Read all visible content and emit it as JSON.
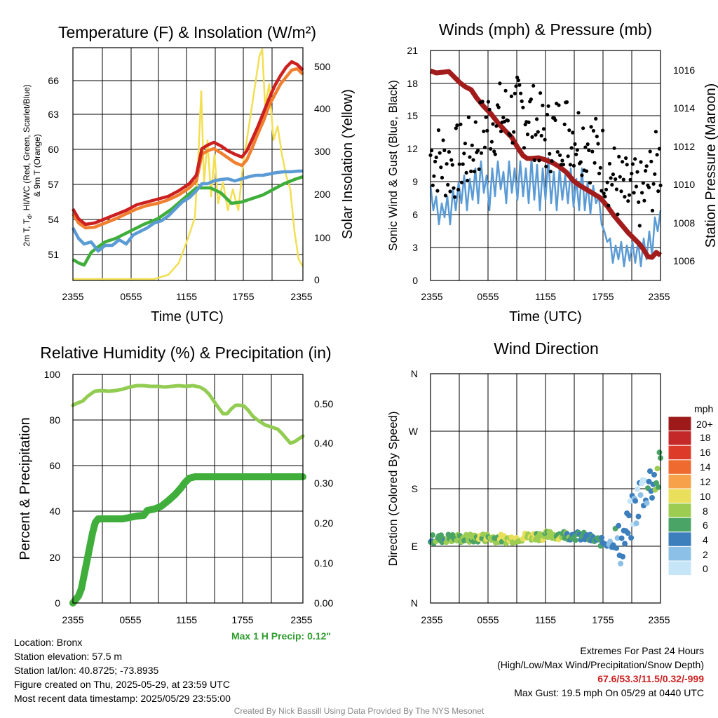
{
  "colors": {
    "temperature": "#cc1f1f",
    "heat_index": "#cc1f1f",
    "dewpoint": "#3fae3a",
    "wind_chill": "#5b9bd5",
    "temp_9m": "#f08030",
    "solar": "#f2df52",
    "sonic_wind": "#5b9bd5",
    "gust": "#000000",
    "pressure": "#a31c1c",
    "rh": "#92cc52",
    "precip": "#3fae3a",
    "max_precip_text": "#2e9c2e",
    "extremes_text": "#cc2222",
    "credit_text": "#888888"
  },
  "charts": {
    "temperature": {
      "title": "Temperature (F) & Insolation (W/m²)",
      "ylabel_left": [
        "2m T, T",
        "d",
        ", HI/WC (Red, Green, Scarlet/Blue)",
        "& 9m T (Orange)"
      ],
      "ylabel_right": "Solar Insolation (Yellow)",
      "xlabel": "Time (UTC)",
      "xticks": [
        "2355",
        "0555",
        "1155",
        "1755",
        "2355"
      ],
      "yticks_left": [
        "51",
        "54",
        "57",
        "60",
        "63",
        "66"
      ],
      "yticks_right": [
        "0",
        "100",
        "200",
        "300",
        "400",
        "500"
      ]
    },
    "winds": {
      "title": "Winds (mph) & Pressure (mb)",
      "ylabel_left": "Sonic Wind & Gust (Blue, Black)",
      "ylabel_right": "Station Pressure (Maroon)",
      "xlabel": "Time (UTC)",
      "xticks": [
        "2355",
        "0555",
        "1155",
        "1755",
        "2355"
      ],
      "yticks_left": [
        "0",
        "3",
        "6",
        "9",
        "12",
        "15",
        "18",
        "21"
      ],
      "yticks_right": [
        "1006",
        "1008",
        "1010",
        "1012",
        "1014",
        "1016"
      ]
    },
    "humidity": {
      "title": "Relative Humidity (%) & Precipitation (in)",
      "ylabel_left": "Percent & Precipitation",
      "xticks": [
        "2355",
        "0555",
        "1155",
        "1755",
        "2355"
      ],
      "yticks_left": [
        "0",
        "20",
        "40",
        "60",
        "80",
        "100"
      ],
      "yticks_right": [
        "0.00",
        "0.10",
        "0.20",
        "0.30",
        "0.40",
        "0.50"
      ],
      "max_precip_label": "Max 1 H Precip: 0.12\""
    },
    "direction": {
      "title": "Wind Direction",
      "ylabel_left": "Direction (Colored By Speed)",
      "xticks": [
        "2355",
        "0555",
        "1155",
        "1755",
        "2355"
      ],
      "yticks_left": [
        "N",
        "E",
        "S",
        "W",
        "N"
      ],
      "legend_title": "mph",
      "legend_labels": [
        "20+",
        "18",
        "16",
        "14",
        "12",
        "10",
        "8",
        "6",
        "4",
        "2",
        "0"
      ],
      "legend_colors": [
        "#9e1a1a",
        "#c42828",
        "#dd3a2a",
        "#ee6a2e",
        "#f7a24a",
        "#e9df5a",
        "#9ccd52",
        "#4aa465",
        "#3d7fbc",
        "#8cc0e6",
        "#c6e6f8"
      ]
    }
  },
  "chart_data": [
    {
      "type": "line",
      "title": "Temperature (F) & Insolation (W/m²)",
      "xlabel": "Time (UTC)",
      "ylabel": "2m T, Td, HI/WC (Red, Green, Scarlet/Blue) & 9m T (Orange)",
      "y2label": "Solar Insolation (Yellow)",
      "x": [
        "2355",
        "0155",
        "0355",
        "0555",
        "0755",
        "0955",
        "1155",
        "1355",
        "1555",
        "1755",
        "1955",
        "2155",
        "2355"
      ],
      "ylim": [
        49,
        69
      ],
      "y2lim": [
        0,
        530
      ],
      "series": [
        {
          "axis": "left",
          "values": [
            55.2,
            53.3,
            53.6,
            54.2,
            55.0,
            55.6,
            56.4,
            61.0,
            60.8,
            59.7,
            63.0,
            67.3,
            66.4
          ]
        },
        {
          "axis": "left",
          "values": [
            54.7,
            52.9,
            53.2,
            53.8,
            54.4,
            55.0,
            55.8,
            60.6,
            60.0,
            59.0,
            61.8,
            66.6,
            65.9
          ]
        },
        {
          "axis": "left",
          "values": [
            53.5,
            52.2,
            52.0,
            51.9,
            52.8,
            54.6,
            57.2,
            57.9,
            58.5,
            58.8,
            59.8,
            61.0,
            61.5
          ]
        },
        {
          "axis": "left",
          "values": [
            50.5,
            50.0,
            52.5,
            53.4,
            54.2,
            55.3,
            56.2,
            57.2,
            55.2,
            55.7,
            56.3,
            57.0,
            57.7
          ]
        },
        {
          "axis": "right",
          "values": [
            0,
            0,
            0,
            0,
            0,
            0,
            50,
            250,
            230,
            200,
            440,
            210,
            30
          ]
        }
      ]
    },
    {
      "type": "line",
      "title": "Winds (mph) & Pressure (mb)",
      "xlabel": "Time (UTC)",
      "ylabel": "Sonic Wind & Gust (Blue, Black)",
      "y2label": "Station Pressure (Maroon)",
      "x": [
        "2355",
        "0155",
        "0355",
        "0555",
        "0755",
        "0955",
        "1155",
        "1355",
        "1555",
        "1755",
        "1955",
        "2155",
        "2355"
      ],
      "ylim": [
        0,
        21
      ],
      "y2lim": [
        1005.4,
        1017.4
      ],
      "series": [
        {
          "axis": "left",
          "values": [
            6.2,
            7.0,
            8.0,
            8.5,
            9.0,
            8.8,
            8.3,
            8.0,
            7.7,
            6.4,
            3.2,
            3.0,
            6.5
          ]
        },
        {
          "axis": "left",
          "values": [
            11.5,
            10.5,
            11.5,
            14.5,
            15.0,
            15.5,
            13.0,
            14.0,
            13.0,
            11.0,
            8.0,
            7.5,
            11.0
          ]
        },
        {
          "axis": "right",
          "values": [
            1016.0,
            1015.9,
            1015.0,
            1013.7,
            1012.8,
            1011.9,
            1011.4,
            1011.0,
            1010.3,
            1009.2,
            1008.0,
            1006.9,
            1006.2
          ]
        }
      ]
    },
    {
      "type": "line",
      "title": "Relative Humidity (%) & Precipitation (in)",
      "ylabel": "Percent & Precipitation",
      "x": [
        "2355",
        "0155",
        "0355",
        "0555",
        "0755",
        "0955",
        "1155",
        "1355",
        "1555",
        "1755",
        "1955",
        "2155",
        "2355"
      ],
      "ylim": [
        0,
        100
      ],
      "y2lim": [
        0.0,
        0.575
      ],
      "series": [
        {
          "axis": "left",
          "values": [
            85,
            89,
            92,
            93,
            94,
            94,
            94,
            92,
            82,
            86,
            80,
            71,
            73
          ]
        },
        {
          "axis": "right",
          "values": [
            0.0,
            0.14,
            0.21,
            0.21,
            0.23,
            0.23,
            0.3,
            0.31,
            0.31,
            0.31,
            0.31,
            0.31,
            0.31
          ]
        }
      ]
    },
    {
      "type": "scatter",
      "title": "Wind Direction",
      "ylabel": "Direction (Colored By Speed)",
      "x": [
        "2355",
        "0155",
        "0355",
        "0555",
        "0755",
        "0955",
        "1155",
        "1355",
        "1555",
        "1755",
        "1955",
        "2155",
        "2355"
      ],
      "ylim": [
        0,
        360
      ],
      "yticks": [
        "N",
        "E",
        "S",
        "W",
        "N"
      ],
      "series": [
        {
          "values": [
            100,
            102,
            101,
            103,
            100,
            104,
            106,
            107,
            104,
            95,
            92,
            175,
            205
          ]
        },
        {
          "values": [
            6,
            7,
            7,
            8,
            9,
            9,
            8,
            7,
            5,
            5,
            3,
            2,
            7
          ]
        }
      ]
    }
  ],
  "info": {
    "location": "Location: Bronx",
    "elevation": "Station elevation: 57.5 m",
    "latlon": "Station lat/lon: 40.8725; -73.8935",
    "created": "Figure created on Thu, 2025-05-29, at 23:59 UTC",
    "recent": "Most recent data timestamp: 2025/05/29 23:55:00",
    "extremes_title": "Extremes For Past 24 Hours",
    "extremes_desc": "(High/Low/Max Wind/Precipitation/Snow Depth)",
    "extremes_values": "67.6/53.3/11.5/0.32/-999",
    "max_gust": "Max Gust: 19.5 mph On 05/29 at 0440 UTC",
    "credit": "Created By Nick Bassill Using Data Provided By The NYS Mesonet"
  }
}
